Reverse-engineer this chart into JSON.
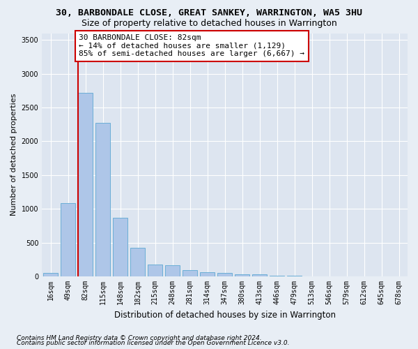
{
  "title1": "30, BARBONDALE CLOSE, GREAT SANKEY, WARRINGTON, WA5 3HU",
  "title2": "Size of property relative to detached houses in Warrington",
  "xlabel": "Distribution of detached houses by size in Warrington",
  "ylabel": "Number of detached properties",
  "footnote1": "Contains HM Land Registry data © Crown copyright and database right 2024.",
  "footnote2": "Contains public sector information licensed under the Open Government Licence v3.0.",
  "categories": [
    "16sqm",
    "49sqm",
    "82sqm",
    "115sqm",
    "148sqm",
    "182sqm",
    "215sqm",
    "248sqm",
    "281sqm",
    "314sqm",
    "347sqm",
    "380sqm",
    "413sqm",
    "446sqm",
    "479sqm",
    "513sqm",
    "546sqm",
    "579sqm",
    "612sqm",
    "645sqm",
    "678sqm"
  ],
  "values": [
    50,
    1090,
    2720,
    2270,
    870,
    420,
    175,
    165,
    90,
    65,
    55,
    35,
    30,
    15,
    15,
    5,
    5,
    0,
    0,
    0,
    0
  ],
  "bar_color": "#aec6e8",
  "bar_edge_color": "#6baed6",
  "highlight_color": "#cc0000",
  "highlight_index": 2,
  "annotation_text": "30 BARBONDALE CLOSE: 82sqm\n← 14% of detached houses are smaller (1,129)\n85% of semi-detached houses are larger (6,667) →",
  "ylim": [
    0,
    3600
  ],
  "yticks": [
    0,
    500,
    1000,
    1500,
    2000,
    2500,
    3000,
    3500
  ],
  "bg_color": "#e8eef5",
  "plot_bg_color": "#dde5f0",
  "grid_color": "#ffffff",
  "annotation_box_color": "#ffffff",
  "annotation_box_edge": "#cc0000",
  "title1_fontsize": 9.5,
  "title2_fontsize": 9,
  "xlabel_fontsize": 8.5,
  "ylabel_fontsize": 8,
  "tick_fontsize": 7,
  "annotation_fontsize": 8,
  "footnote_fontsize": 6.5
}
